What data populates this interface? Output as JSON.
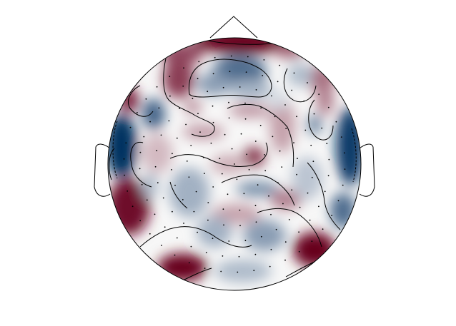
{
  "chart_data": {
    "type": "heatmap",
    "subtype": "scalp-topography",
    "title": "",
    "colormap": "RdBu_r",
    "color_low": "#053061",
    "color_mid": "#f7f7f7",
    "color_high": "#67001f",
    "value_range": [
      -1,
      1
    ],
    "contours": true,
    "contour_levels": [
      0
    ],
    "sensor_markers": "dot",
    "head_outline": true,
    "nose": true,
    "ears": true
  }
}
